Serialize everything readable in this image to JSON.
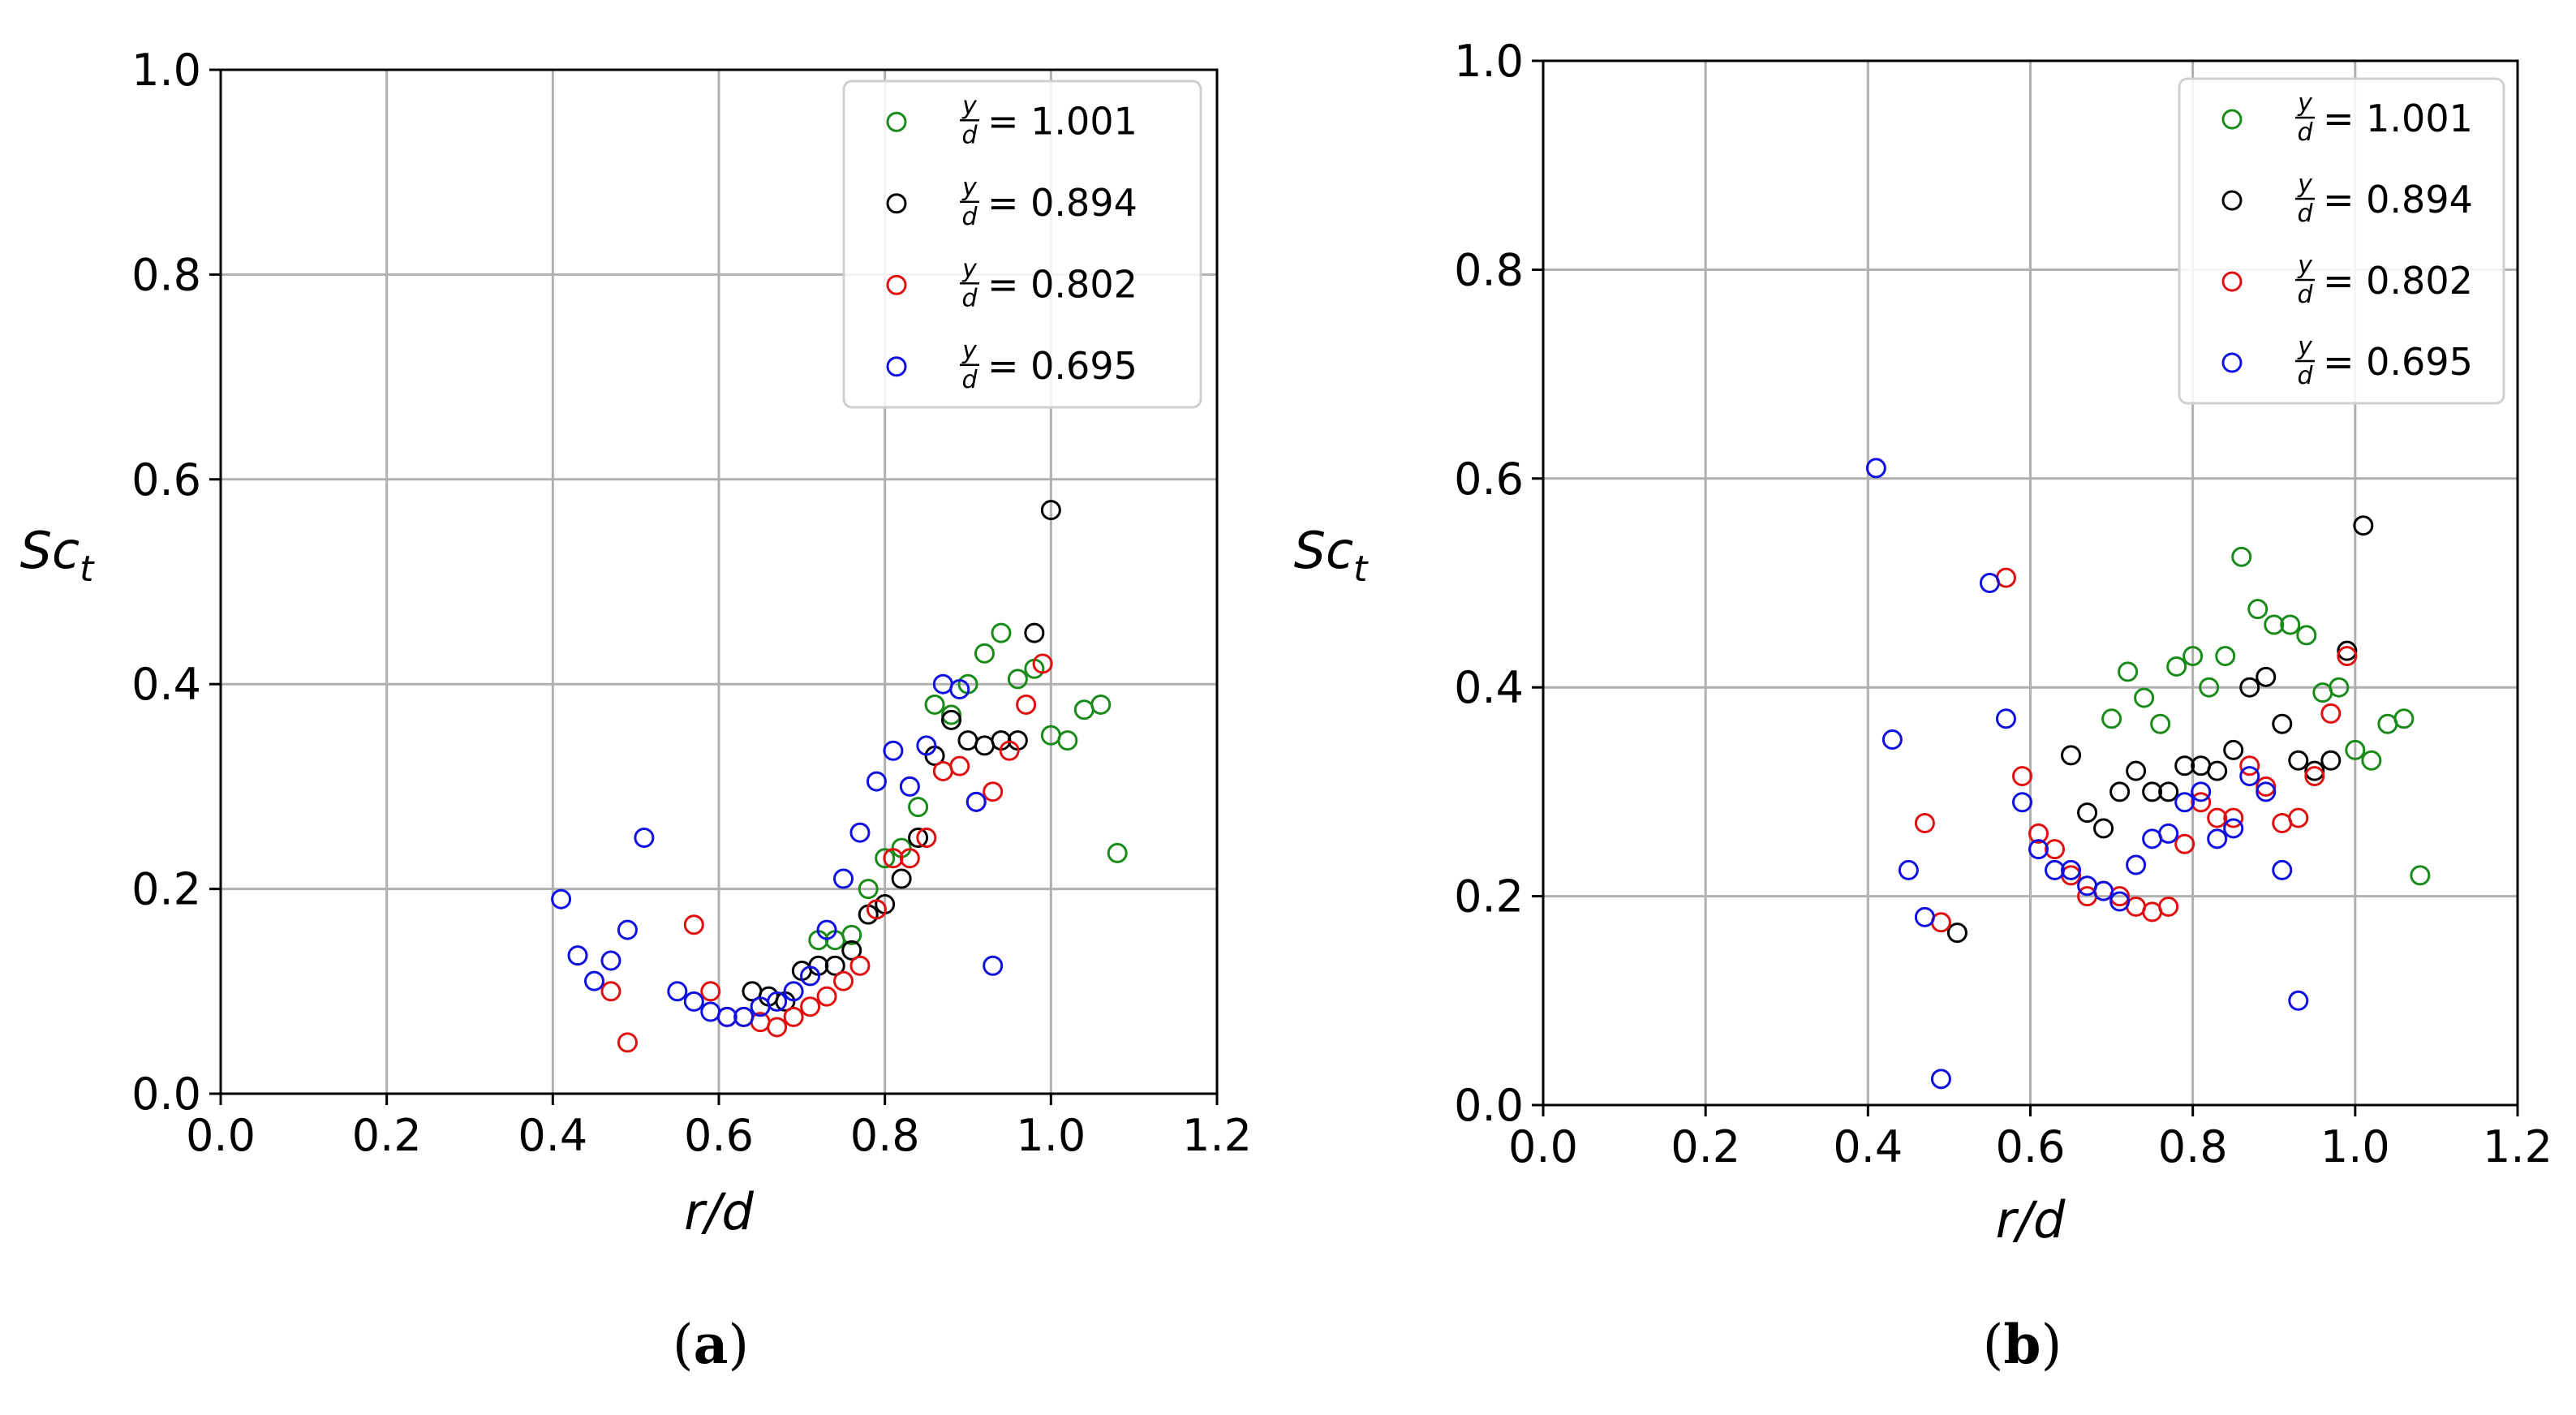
{
  "chart_data": [
    {
      "type": "scatter",
      "panel_label": "a",
      "xlabel": "r/d",
      "ylabel": "Sc",
      "ylabel_sub": "t",
      "xlim": [
        0.0,
        1.2
      ],
      "ylim": [
        0.0,
        1.0
      ],
      "xticks": [
        "0.0",
        "0.2",
        "0.4",
        "0.6",
        "0.8",
        "1.0",
        "1.2"
      ],
      "yticks": [
        "0.0",
        "0.2",
        "0.4",
        "0.6",
        "0.8",
        "1.0"
      ],
      "grid": true,
      "legend_position": "top-right",
      "series": [
        {
          "name": "y/d = 1.001",
          "frac_num": "y",
          "frac_den": "d",
          "value_label": "= 1.001",
          "color": "#1a8a1a",
          "points": [
            [
              0.72,
              0.15
            ],
            [
              0.74,
              0.15
            ],
            [
              0.76,
              0.155
            ],
            [
              0.78,
              0.2
            ],
            [
              0.8,
              0.23
            ],
            [
              0.82,
              0.24
            ],
            [
              0.84,
              0.28
            ],
            [
              0.86,
              0.38
            ],
            [
              0.88,
              0.37
            ],
            [
              0.9,
              0.4
            ],
            [
              0.92,
              0.43
            ],
            [
              0.94,
              0.45
            ],
            [
              0.96,
              0.405
            ],
            [
              0.98,
              0.415
            ],
            [
              1.0,
              0.35
            ],
            [
              1.02,
              0.345
            ],
            [
              1.04,
              0.375
            ],
            [
              1.06,
              0.38
            ],
            [
              1.08,
              0.235
            ]
          ]
        },
        {
          "name": "y/d = 0.894",
          "frac_num": "y",
          "frac_den": "d",
          "value_label": "= 0.894",
          "color": "#000000",
          "points": [
            [
              0.64,
              0.1
            ],
            [
              0.66,
              0.095
            ],
            [
              0.68,
              0.09
            ],
            [
              0.7,
              0.12
            ],
            [
              0.72,
              0.125
            ],
            [
              0.74,
              0.125
            ],
            [
              0.76,
              0.14
            ],
            [
              0.78,
              0.175
            ],
            [
              0.8,
              0.185
            ],
            [
              0.82,
              0.21
            ],
            [
              0.84,
              0.25
            ],
            [
              0.86,
              0.33
            ],
            [
              0.88,
              0.365
            ],
            [
              0.9,
              0.345
            ],
            [
              0.92,
              0.34
            ],
            [
              0.94,
              0.345
            ],
            [
              0.96,
              0.345
            ],
            [
              0.98,
              0.45
            ],
            [
              1.0,
              0.57
            ]
          ]
        },
        {
          "name": "y/d = 0.802",
          "frac_num": "y",
          "frac_den": "d",
          "value_label": "= 0.802",
          "color": "#e01010",
          "points": [
            [
              0.47,
              0.1
            ],
            [
              0.49,
              0.05
            ],
            [
              0.57,
              0.165
            ],
            [
              0.59,
              0.1
            ],
            [
              0.61,
              0.075
            ],
            [
              0.63,
              0.075
            ],
            [
              0.65,
              0.07
            ],
            [
              0.67,
              0.065
            ],
            [
              0.69,
              0.075
            ],
            [
              0.71,
              0.085
            ],
            [
              0.73,
              0.095
            ],
            [
              0.75,
              0.11
            ],
            [
              0.77,
              0.125
            ],
            [
              0.79,
              0.18
            ],
            [
              0.81,
              0.23
            ],
            [
              0.83,
              0.23
            ],
            [
              0.85,
              0.25
            ],
            [
              0.87,
              0.315
            ],
            [
              0.89,
              0.32
            ],
            [
              0.91,
              0.285
            ],
            [
              0.93,
              0.295
            ],
            [
              0.95,
              0.335
            ],
            [
              0.97,
              0.38
            ],
            [
              0.99,
              0.42
            ]
          ]
        },
        {
          "name": "y/d = 0.695",
          "frac_num": "y",
          "frac_den": "d",
          "value_label": "= 0.695",
          "color": "#1010e0",
          "points": [
            [
              0.41,
              0.19
            ],
            [
              0.43,
              0.135
            ],
            [
              0.45,
              0.11
            ],
            [
              0.47,
              0.13
            ],
            [
              0.49,
              0.16
            ],
            [
              0.51,
              0.25
            ],
            [
              0.55,
              0.1
            ],
            [
              0.57,
              0.09
            ],
            [
              0.59,
              0.08
            ],
            [
              0.61,
              0.075
            ],
            [
              0.63,
              0.075
            ],
            [
              0.65,
              0.085
            ],
            [
              0.67,
              0.09
            ],
            [
              0.69,
              0.1
            ],
            [
              0.71,
              0.115
            ],
            [
              0.73,
              0.16
            ],
            [
              0.75,
              0.21
            ],
            [
              0.77,
              0.255
            ],
            [
              0.79,
              0.305
            ],
            [
              0.81,
              0.335
            ],
            [
              0.83,
              0.3
            ],
            [
              0.85,
              0.34
            ],
            [
              0.87,
              0.4
            ],
            [
              0.89,
              0.395
            ],
            [
              0.91,
              0.285
            ],
            [
              0.93,
              0.125
            ]
          ]
        }
      ]
    },
    {
      "type": "scatter",
      "panel_label": "b",
      "xlabel": "r/d",
      "ylabel": "Sc",
      "ylabel_sub": "t",
      "xlim": [
        0.0,
        1.2
      ],
      "ylim": [
        0.0,
        1.0
      ],
      "xticks": [
        "0.0",
        "0.2",
        "0.4",
        "0.6",
        "0.8",
        "1.0",
        "1.2"
      ],
      "yticks": [
        "0.0",
        "0.2",
        "0.4",
        "0.6",
        "0.8",
        "1.0"
      ],
      "grid": true,
      "legend_position": "top-right",
      "series": [
        {
          "name": "y/d = 1.001",
          "frac_num": "y",
          "frac_den": "d",
          "value_label": "= 1.001",
          "color": "#1a8a1a",
          "points": [
            [
              0.7,
              0.37
            ],
            [
              0.72,
              0.415
            ],
            [
              0.74,
              0.39
            ],
            [
              0.76,
              0.365
            ],
            [
              0.78,
              0.42
            ],
            [
              0.8,
              0.43
            ],
            [
              0.82,
              0.4
            ],
            [
              0.84,
              0.43
            ],
            [
              0.86,
              0.525
            ],
            [
              0.88,
              0.475
            ],
            [
              0.9,
              0.46
            ],
            [
              0.92,
              0.46
            ],
            [
              0.94,
              0.45
            ],
            [
              0.96,
              0.395
            ],
            [
              0.98,
              0.4
            ],
            [
              1.0,
              0.34
            ],
            [
              1.02,
              0.33
            ],
            [
              1.04,
              0.365
            ],
            [
              1.06,
              0.37
            ],
            [
              1.08,
              0.22
            ]
          ]
        },
        {
          "name": "y/d = 0.894",
          "frac_num": "y",
          "frac_den": "d",
          "value_label": "= 0.894",
          "color": "#000000",
          "points": [
            [
              0.51,
              0.165
            ],
            [
              0.65,
              0.335
            ],
            [
              0.67,
              0.28
            ],
            [
              0.69,
              0.265
            ],
            [
              0.71,
              0.3
            ],
            [
              0.73,
              0.32
            ],
            [
              0.75,
              0.3
            ],
            [
              0.77,
              0.3
            ],
            [
              0.79,
              0.325
            ],
            [
              0.81,
              0.325
            ],
            [
              0.83,
              0.32
            ],
            [
              0.85,
              0.34
            ],
            [
              0.87,
              0.4
            ],
            [
              0.89,
              0.41
            ],
            [
              0.91,
              0.365
            ],
            [
              0.93,
              0.33
            ],
            [
              0.95,
              0.32
            ],
            [
              0.97,
              0.33
            ],
            [
              0.99,
              0.435
            ],
            [
              1.01,
              0.555
            ]
          ]
        },
        {
          "name": "y/d = 0.802",
          "frac_num": "y",
          "frac_den": "d",
          "value_label": "= 0.802",
          "color": "#e01010",
          "points": [
            [
              0.47,
              0.27
            ],
            [
              0.49,
              0.175
            ],
            [
              0.57,
              0.505
            ],
            [
              0.59,
              0.315
            ],
            [
              0.61,
              0.26
            ],
            [
              0.63,
              0.245
            ],
            [
              0.65,
              0.22
            ],
            [
              0.67,
              0.2
            ],
            [
              0.69,
              0.205
            ],
            [
              0.71,
              0.2
            ],
            [
              0.73,
              0.19
            ],
            [
              0.75,
              0.185
            ],
            [
              0.77,
              0.19
            ],
            [
              0.79,
              0.25
            ],
            [
              0.81,
              0.29
            ],
            [
              0.83,
              0.275
            ],
            [
              0.85,
              0.275
            ],
            [
              0.87,
              0.325
            ],
            [
              0.89,
              0.305
            ],
            [
              0.91,
              0.27
            ],
            [
              0.93,
              0.275
            ],
            [
              0.95,
              0.315
            ],
            [
              0.97,
              0.375
            ],
            [
              0.99,
              0.43
            ]
          ]
        },
        {
          "name": "y/d = 0.695",
          "frac_num": "y",
          "frac_den": "d",
          "value_label": "= 0.695",
          "color": "#1010e0",
          "points": [
            [
              0.41,
              0.61
            ],
            [
              0.43,
              0.35
            ],
            [
              0.45,
              0.225
            ],
            [
              0.47,
              0.18
            ],
            [
              0.49,
              0.025
            ],
            [
              0.55,
              0.5
            ],
            [
              0.57,
              0.37
            ],
            [
              0.59,
              0.29
            ],
            [
              0.61,
              0.245
            ],
            [
              0.63,
              0.225
            ],
            [
              0.65,
              0.225
            ],
            [
              0.67,
              0.21
            ],
            [
              0.69,
              0.205
            ],
            [
              0.71,
              0.195
            ],
            [
              0.73,
              0.23
            ],
            [
              0.75,
              0.255
            ],
            [
              0.77,
              0.26
            ],
            [
              0.79,
              0.29
            ],
            [
              0.81,
              0.3
            ],
            [
              0.83,
              0.255
            ],
            [
              0.85,
              0.265
            ],
            [
              0.87,
              0.315
            ],
            [
              0.89,
              0.3
            ],
            [
              0.91,
              0.225
            ],
            [
              0.93,
              0.1
            ]
          ]
        }
      ]
    }
  ]
}
